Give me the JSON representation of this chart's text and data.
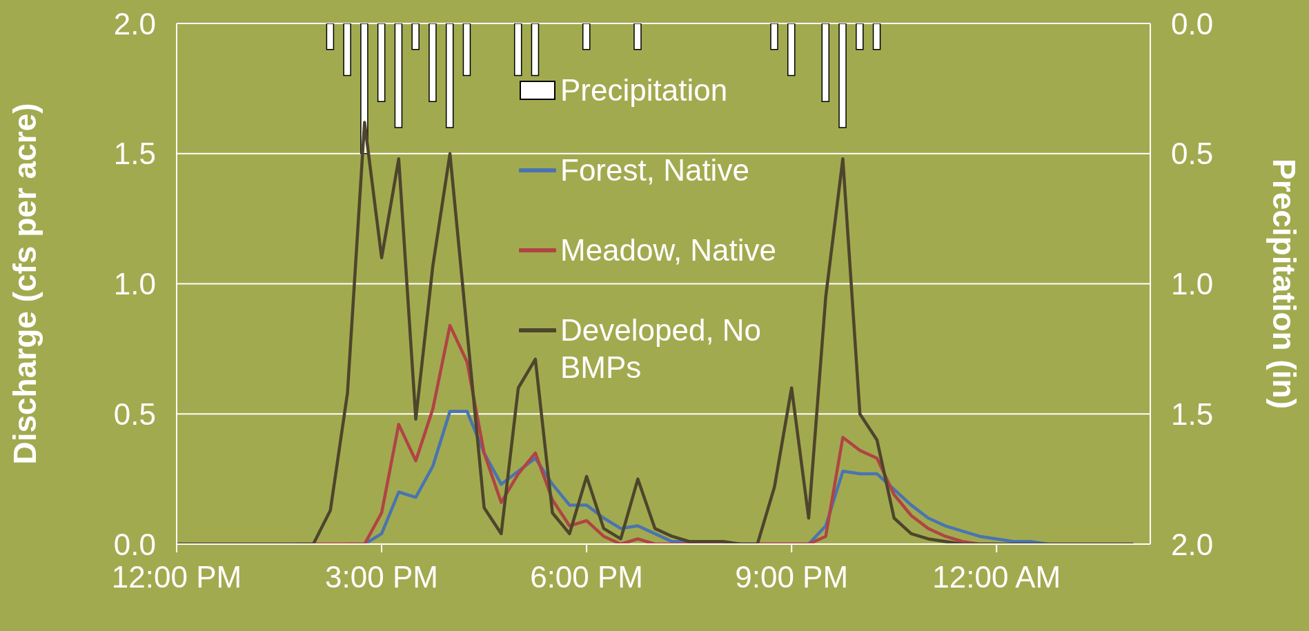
{
  "chart_data": {
    "type": "line",
    "xlabel": null,
    "ylabel": "Discharge (cfs per acre)",
    "y2label": "Precipitation (in)",
    "x": [
      12,
      12.25,
      12.5,
      12.75,
      13,
      13.25,
      13.5,
      13.75,
      14,
      14.25,
      14.5,
      14.75,
      15,
      15.25,
      15.5,
      15.75,
      16,
      16.25,
      16.5,
      16.75,
      17,
      17.25,
      17.5,
      17.75,
      18,
      18.25,
      18.5,
      18.75,
      19,
      19.25,
      19.5,
      19.75,
      20,
      20.25,
      20.5,
      20.75,
      21,
      21.25,
      21.5,
      21.75,
      22,
      22.25,
      22.5,
      22.75,
      23,
      23.25,
      23.5,
      23.75,
      24,
      24.25,
      24.5,
      24.75,
      25,
      25.25,
      25.5,
      25.75,
      26
    ],
    "series": [
      {
        "name": "Precipitation",
        "type": "bar",
        "axis": "y2",
        "color": "#ffffff",
        "x": [
          14.25,
          14.5,
          14.75,
          15,
          15.25,
          15.5,
          15.75,
          16,
          16.25,
          17,
          17.25,
          18,
          18.75,
          20.75,
          21,
          21.5,
          21.75,
          22,
          22.25
        ],
        "values": [
          0.1,
          0.2,
          0.5,
          0.3,
          0.4,
          0.1,
          0.3,
          0.4,
          0.2,
          0.2,
          0.2,
          0.1,
          0.1,
          0.1,
          0.2,
          0.3,
          0.4,
          0.1,
          0.1
        ]
      },
      {
        "name": "Forest, Native",
        "color": "#4a74b0",
        "values": [
          null,
          null,
          null,
          null,
          null,
          null,
          null,
          null,
          null,
          null,
          0,
          0,
          0.04,
          0.2,
          0.18,
          0.3,
          0.51,
          0.51,
          0.35,
          0.23,
          0.28,
          0.33,
          0.23,
          0.15,
          0.15,
          0.1,
          0.06,
          0.07,
          0.04,
          0.01,
          0.01,
          0,
          0,
          0,
          0,
          0,
          0,
          0,
          0.07,
          0.28,
          0.27,
          0.27,
          0.21,
          0.15,
          0.1,
          0.07,
          0.05,
          0.03,
          0.02,
          0.01,
          0.01,
          0,
          null,
          null,
          null,
          null,
          null
        ]
      },
      {
        "name": "Meadow, Native",
        "color": "#b04444",
        "values": [
          null,
          null,
          null,
          null,
          null,
          null,
          null,
          0,
          0,
          0,
          0,
          0,
          0.12,
          0.46,
          0.32,
          0.52,
          0.84,
          0.7,
          0.35,
          0.16,
          0.27,
          0.35,
          0.17,
          0.07,
          0.09,
          0.03,
          0,
          0.02,
          0,
          0,
          0,
          0,
          0,
          0,
          0,
          0,
          0,
          0,
          0.03,
          0.41,
          0.36,
          0.33,
          0.19,
          0.11,
          0.06,
          0.03,
          0.01,
          0,
          0,
          null,
          null,
          null,
          null,
          null,
          null,
          null,
          null
        ]
      },
      {
        "name": "Developed, No BMPs",
        "color": "#4d452c",
        "values": [
          0,
          0,
          0,
          0,
          0,
          0,
          0,
          0,
          0,
          0.13,
          0.58,
          1.62,
          1.1,
          1.48,
          0.48,
          1.07,
          1.5,
          0.82,
          0.14,
          0.04,
          0.6,
          0.71,
          0.12,
          0.04,
          0.26,
          0.06,
          0.02,
          0.25,
          0.06,
          0.03,
          0.01,
          0.01,
          0.01,
          0,
          0,
          0.22,
          0.6,
          0.1,
          0.95,
          1.48,
          0.5,
          0.4,
          0.1,
          0.04,
          0.02,
          0.01,
          0,
          0,
          0,
          0,
          0,
          0,
          0,
          0,
          0,
          0,
          0
        ]
      }
    ],
    "xlim": [
      12,
      26.25
    ],
    "xticks": [
      {
        "value": 12,
        "label": "12:00 PM"
      },
      {
        "value": 15,
        "label": "3:00 PM"
      },
      {
        "value": 18,
        "label": "6:00 PM"
      },
      {
        "value": 21,
        "label": "9:00 PM"
      },
      {
        "value": 24,
        "label": "12:00 AM"
      }
    ],
    "ylim": [
      0,
      2
    ],
    "yticks": [
      {
        "value": 0,
        "label": "0.0"
      },
      {
        "value": 0.5,
        "label": "0.5"
      },
      {
        "value": 1,
        "label": "1.0"
      },
      {
        "value": 1.5,
        "label": "1.5"
      },
      {
        "value": 2,
        "label": "2.0"
      }
    ],
    "y2lim": [
      2,
      0
    ],
    "y2ticks": [
      {
        "value": 0,
        "label": "0.0"
      },
      {
        "value": 0.5,
        "label": "0.5"
      },
      {
        "value": 1,
        "label": "1.0"
      },
      {
        "value": 1.5,
        "label": "1.5"
      },
      {
        "value": 2,
        "label": "2.0"
      }
    ],
    "grid": "y",
    "legend": "top",
    "line_style": "solid"
  }
}
